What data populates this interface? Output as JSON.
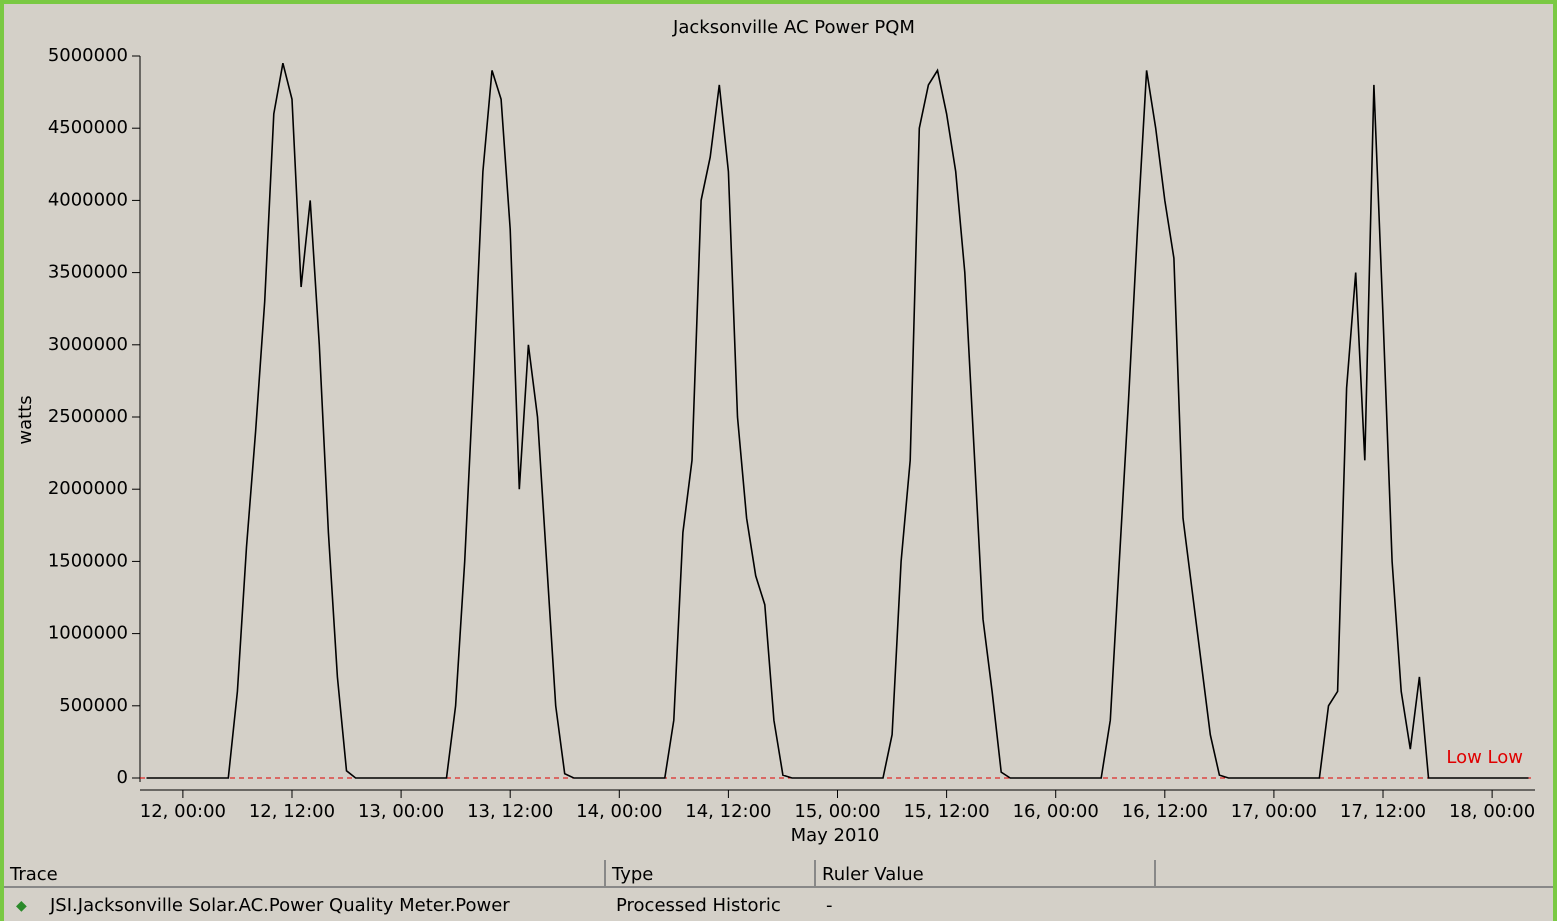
{
  "chart_data": {
    "type": "line",
    "title": "Jacksonville AC Power PQM",
    "y_label": "watts",
    "x_label": "May 2010",
    "x": [
      "2010-05-11T20:00",
      "2010-05-12T00:00",
      "2010-05-12T05:00",
      "2010-05-12T06:00",
      "2010-05-12T07:00",
      "2010-05-12T08:00",
      "2010-05-12T09:00",
      "2010-05-12T10:00",
      "2010-05-12T11:00",
      "2010-05-12T12:00",
      "2010-05-12T13:00",
      "2010-05-12T14:00",
      "2010-05-12T15:00",
      "2010-05-12T16:00",
      "2010-05-12T17:00",
      "2010-05-12T18:00",
      "2010-05-12T19:00",
      "2010-05-13T00:00",
      "2010-05-13T05:00",
      "2010-05-13T06:00",
      "2010-05-13T07:00",
      "2010-05-13T08:00",
      "2010-05-13T09:00",
      "2010-05-13T10:00",
      "2010-05-13T11:00",
      "2010-05-13T12:00",
      "2010-05-13T13:00",
      "2010-05-13T14:00",
      "2010-05-13T15:00",
      "2010-05-13T16:00",
      "2010-05-13T17:00",
      "2010-05-13T18:00",
      "2010-05-13T19:00",
      "2010-05-14T00:00",
      "2010-05-14T05:00",
      "2010-05-14T06:00",
      "2010-05-14T07:00",
      "2010-05-14T08:00",
      "2010-05-14T09:00",
      "2010-05-14T10:00",
      "2010-05-14T11:00",
      "2010-05-14T12:00",
      "2010-05-14T13:00",
      "2010-05-14T14:00",
      "2010-05-14T15:00",
      "2010-05-14T16:00",
      "2010-05-14T17:00",
      "2010-05-14T18:00",
      "2010-05-14T19:00",
      "2010-05-15T00:00",
      "2010-05-15T05:00",
      "2010-05-15T06:00",
      "2010-05-15T07:00",
      "2010-05-15T08:00",
      "2010-05-15T09:00",
      "2010-05-15T10:00",
      "2010-05-15T11:00",
      "2010-05-15T12:00",
      "2010-05-15T13:00",
      "2010-05-15T14:00",
      "2010-05-15T15:00",
      "2010-05-15T16:00",
      "2010-05-15T17:00",
      "2010-05-15T18:00",
      "2010-05-15T19:00",
      "2010-05-16T00:00",
      "2010-05-16T05:00",
      "2010-05-16T06:00",
      "2010-05-16T07:00",
      "2010-05-16T08:00",
      "2010-05-16T09:00",
      "2010-05-16T10:00",
      "2010-05-16T11:00",
      "2010-05-16T12:00",
      "2010-05-16T13:00",
      "2010-05-16T14:00",
      "2010-05-16T15:00",
      "2010-05-16T16:00",
      "2010-05-16T17:00",
      "2010-05-16T18:00",
      "2010-05-16T19:00",
      "2010-05-17T00:00",
      "2010-05-17T05:00",
      "2010-05-17T06:00",
      "2010-05-17T07:00",
      "2010-05-17T08:00",
      "2010-05-17T09:00",
      "2010-05-17T10:00",
      "2010-05-17T11:00",
      "2010-05-17T12:00",
      "2010-05-17T13:00",
      "2010-05-17T14:00",
      "2010-05-17T15:00",
      "2010-05-17T16:00",
      "2010-05-17T17:00",
      "2010-05-17T18:00",
      "2010-05-17T19:00",
      "2010-05-18T00:00",
      "2010-05-18T04:00"
    ],
    "series": [
      {
        "name": "JSI.Jacksonville Solar.AC.Power Quality Meter.Power",
        "color": "#000000",
        "values": [
          0,
          0,
          0,
          600000,
          1600000,
          2400000,
          3300000,
          4600000,
          4950000,
          4700000,
          3400000,
          4000000,
          3000000,
          1700000,
          700000,
          50000,
          0,
          0,
          0,
          500000,
          1500000,
          2800000,
          4200000,
          4900000,
          4700000,
          3800000,
          2000000,
          3000000,
          2500000,
          1500000,
          500000,
          30000,
          0,
          0,
          0,
          400000,
          1700000,
          2200000,
          4000000,
          4300000,
          4800000,
          4200000,
          2500000,
          1800000,
          1400000,
          1200000,
          400000,
          20000,
          0,
          0,
          0,
          300000,
          1500000,
          2200000,
          4500000,
          4800000,
          4900000,
          4600000,
          4200000,
          3500000,
          2300000,
          1100000,
          600000,
          40000,
          0,
          0,
          0,
          400000,
          1500000,
          2600000,
          3800000,
          4900000,
          4500000,
          4000000,
          3600000,
          1800000,
          1300000,
          800000,
          300000,
          20000,
          0,
          0,
          0,
          500000,
          600000,
          2700000,
          3500000,
          2200000,
          4800000,
          3200000,
          1500000,
          600000,
          200000,
          700000,
          0,
          0,
          0,
          0,
          0
        ]
      }
    ],
    "xlim": [
      "2010-05-11T19:17",
      "2010-05-18T04:43"
    ],
    "xticks": [
      {
        "value": "2010-05-12T00:00",
        "label": "12, 00:00"
      },
      {
        "value": "2010-05-12T12:00",
        "label": "12, 12:00"
      },
      {
        "value": "2010-05-13T00:00",
        "label": "13, 00:00"
      },
      {
        "value": "2010-05-13T12:00",
        "label": "13, 12:00"
      },
      {
        "value": "2010-05-14T00:00",
        "label": "14, 00:00"
      },
      {
        "value": "2010-05-14T12:00",
        "label": "14, 12:00"
      },
      {
        "value": "2010-05-15T00:00",
        "label": "15, 00:00"
      },
      {
        "value": "2010-05-15T12:00",
        "label": "15, 12:00"
      },
      {
        "value": "2010-05-16T00:00",
        "label": "16, 00:00"
      },
      {
        "value": "2010-05-16T12:00",
        "label": "16, 12:00"
      },
      {
        "value": "2010-05-17T00:00",
        "label": "17, 00:00"
      },
      {
        "value": "2010-05-17T12:00",
        "label": "17, 12:00"
      },
      {
        "value": "2010-05-18T00:00",
        "label": "18, 00:00"
      }
    ],
    "ylim": [
      0,
      5000000
    ],
    "yticks": [
      0,
      500000,
      1000000,
      1500000,
      2000000,
      2500000,
      3000000,
      3500000,
      4000000,
      4500000,
      5000000
    ],
    "grid": false,
    "limit": {
      "value": 0,
      "label": "Low Low",
      "color": "#e00000"
    }
  },
  "table": {
    "headers": [
      "Trace",
      "Type",
      "Ruler Value"
    ],
    "rows": [
      [
        "Processed Historic",
        "-"
      ]
    ]
  }
}
